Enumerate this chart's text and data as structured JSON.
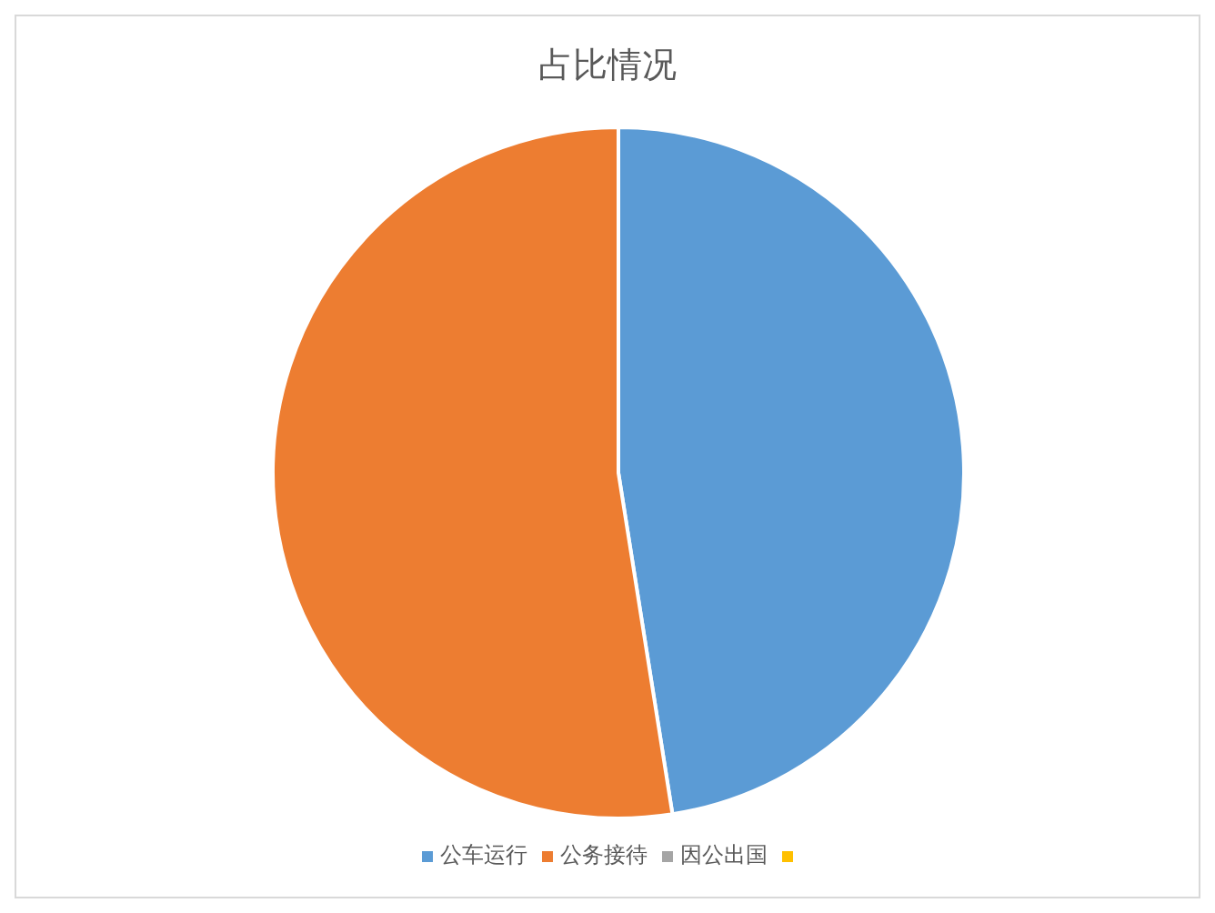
{
  "chart_data": {
    "type": "pie",
    "title": "占比情况",
    "categories": [
      "公车运行",
      "公务接待",
      "因公出国",
      null
    ],
    "values": [
      47.5,
      52.5,
      0,
      0
    ],
    "colors": [
      "#5b9bd5",
      "#ed7d31",
      "#a5a5a5",
      "#ffc000"
    ],
    "legend": "bottom"
  }
}
